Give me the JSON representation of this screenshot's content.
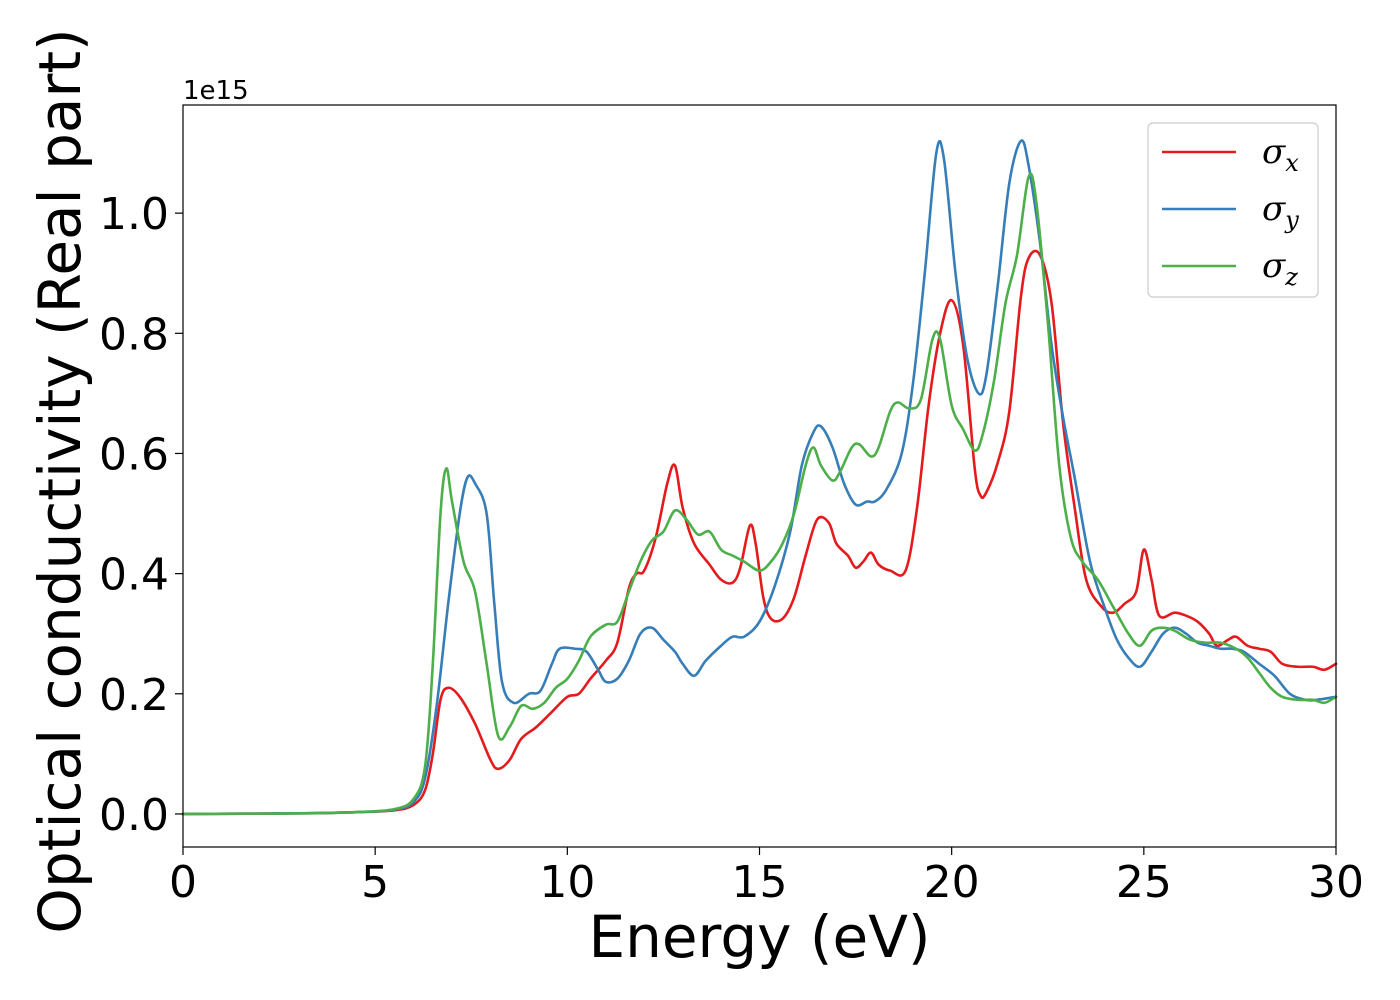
{
  "chart_data": {
    "type": "line",
    "xlabel": "Energy (eV)",
    "ylabel": "Optical conductivity (Real part)",
    "y_offset_label": "1e15",
    "xlim": [
      0,
      30
    ],
    "ylim": [
      -0.055,
      1.18
    ],
    "xticks": [
      0,
      5,
      10,
      15,
      20,
      25,
      30
    ],
    "xtick_labels": [
      "0",
      "5",
      "10",
      "15",
      "20",
      "25",
      "30"
    ],
    "yticks": [
      0.0,
      0.2,
      0.4,
      0.6,
      0.8,
      1.0
    ],
    "ytick_labels": [
      "0.0",
      "0.2",
      "0.4",
      "0.6",
      "0.8",
      "1.0"
    ],
    "grid": false,
    "legend_position": "top-right",
    "series": [
      {
        "name": "σx",
        "symbol": "σ",
        "subscript": "x",
        "color": "#e41a1c",
        "points": [
          [
            0,
            0
          ],
          [
            3,
            0.001
          ],
          [
            4.5,
            0.003
          ],
          [
            5.5,
            0.006
          ],
          [
            6.0,
            0.015
          ],
          [
            6.3,
            0.04
          ],
          [
            6.5,
            0.1
          ],
          [
            6.7,
            0.19
          ],
          [
            6.9,
            0.21
          ],
          [
            7.2,
            0.195
          ],
          [
            7.6,
            0.15
          ],
          [
            8.0,
            0.09
          ],
          [
            8.2,
            0.075
          ],
          [
            8.5,
            0.09
          ],
          [
            8.8,
            0.125
          ],
          [
            9.2,
            0.145
          ],
          [
            9.6,
            0.17
          ],
          [
            10.0,
            0.195
          ],
          [
            10.3,
            0.2
          ],
          [
            10.6,
            0.225
          ],
          [
            11.0,
            0.255
          ],
          [
            11.3,
            0.285
          ],
          [
            11.6,
            0.375
          ],
          [
            11.8,
            0.4
          ],
          [
            12.0,
            0.405
          ],
          [
            12.3,
            0.46
          ],
          [
            12.6,
            0.55
          ],
          [
            12.8,
            0.58
          ],
          [
            13.0,
            0.51
          ],
          [
            13.3,
            0.45
          ],
          [
            13.7,
            0.415
          ],
          [
            14.0,
            0.39
          ],
          [
            14.3,
            0.385
          ],
          [
            14.5,
            0.41
          ],
          [
            14.75,
            0.48
          ],
          [
            14.9,
            0.45
          ],
          [
            15.1,
            0.36
          ],
          [
            15.3,
            0.325
          ],
          [
            15.6,
            0.325
          ],
          [
            15.9,
            0.36
          ],
          [
            16.2,
            0.43
          ],
          [
            16.5,
            0.49
          ],
          [
            16.8,
            0.485
          ],
          [
            17.0,
            0.45
          ],
          [
            17.3,
            0.43
          ],
          [
            17.5,
            0.41
          ],
          [
            17.7,
            0.42
          ],
          [
            17.9,
            0.435
          ],
          [
            18.1,
            0.415
          ],
          [
            18.4,
            0.405
          ],
          [
            18.8,
            0.405
          ],
          [
            19.1,
            0.51
          ],
          [
            19.4,
            0.68
          ],
          [
            19.7,
            0.8
          ],
          [
            20.0,
            0.855
          ],
          [
            20.3,
            0.78
          ],
          [
            20.6,
            0.575
          ],
          [
            20.75,
            0.53
          ],
          [
            20.9,
            0.535
          ],
          [
            21.2,
            0.585
          ],
          [
            21.5,
            0.67
          ],
          [
            21.8,
            0.86
          ],
          [
            22.0,
            0.925
          ],
          [
            22.3,
            0.93
          ],
          [
            22.6,
            0.85
          ],
          [
            22.9,
            0.65
          ],
          [
            23.2,
            0.51
          ],
          [
            23.5,
            0.39
          ],
          [
            23.9,
            0.345
          ],
          [
            24.2,
            0.335
          ],
          [
            24.5,
            0.35
          ],
          [
            24.8,
            0.37
          ],
          [
            25.0,
            0.44
          ],
          [
            25.2,
            0.39
          ],
          [
            25.4,
            0.33
          ],
          [
            25.8,
            0.335
          ],
          [
            26.1,
            0.33
          ],
          [
            26.4,
            0.32
          ],
          [
            26.7,
            0.3
          ],
          [
            26.9,
            0.28
          ],
          [
            27.2,
            0.29
          ],
          [
            27.4,
            0.295
          ],
          [
            27.7,
            0.28
          ],
          [
            28.0,
            0.275
          ],
          [
            28.3,
            0.27
          ],
          [
            28.6,
            0.25
          ],
          [
            29.0,
            0.245
          ],
          [
            29.4,
            0.245
          ],
          [
            29.7,
            0.24
          ],
          [
            30.0,
            0.25
          ]
        ]
      },
      {
        "name": "σy",
        "symbol": "σ",
        "subscript": "y",
        "color": "#377eb8",
        "points": [
          [
            0,
            0
          ],
          [
            3,
            0.001
          ],
          [
            4.5,
            0.003
          ],
          [
            5.5,
            0.007
          ],
          [
            6.0,
            0.02
          ],
          [
            6.3,
            0.06
          ],
          [
            6.6,
            0.18
          ],
          [
            6.9,
            0.35
          ],
          [
            7.2,
            0.5
          ],
          [
            7.4,
            0.56
          ],
          [
            7.6,
            0.55
          ],
          [
            7.9,
            0.5
          ],
          [
            8.1,
            0.35
          ],
          [
            8.3,
            0.22
          ],
          [
            8.6,
            0.185
          ],
          [
            9.0,
            0.2
          ],
          [
            9.3,
            0.205
          ],
          [
            9.6,
            0.25
          ],
          [
            9.8,
            0.275
          ],
          [
            10.2,
            0.275
          ],
          [
            10.5,
            0.27
          ],
          [
            10.8,
            0.24
          ],
          [
            11.0,
            0.22
          ],
          [
            11.3,
            0.225
          ],
          [
            11.6,
            0.255
          ],
          [
            11.9,
            0.3
          ],
          [
            12.2,
            0.31
          ],
          [
            12.5,
            0.29
          ],
          [
            12.8,
            0.27
          ],
          [
            13.0,
            0.25
          ],
          [
            13.3,
            0.23
          ],
          [
            13.6,
            0.255
          ],
          [
            14.0,
            0.28
          ],
          [
            14.3,
            0.295
          ],
          [
            14.6,
            0.295
          ],
          [
            15.0,
            0.32
          ],
          [
            15.4,
            0.38
          ],
          [
            15.8,
            0.47
          ],
          [
            16.1,
            0.58
          ],
          [
            16.4,
            0.635
          ],
          [
            16.6,
            0.645
          ],
          [
            16.9,
            0.61
          ],
          [
            17.2,
            0.55
          ],
          [
            17.5,
            0.515
          ],
          [
            17.8,
            0.52
          ],
          [
            18.0,
            0.52
          ],
          [
            18.3,
            0.54
          ],
          [
            18.7,
            0.6
          ],
          [
            19.0,
            0.72
          ],
          [
            19.3,
            0.9
          ],
          [
            19.6,
            1.1
          ],
          [
            19.8,
            1.09
          ],
          [
            20.1,
            0.9
          ],
          [
            20.4,
            0.76
          ],
          [
            20.7,
            0.7
          ],
          [
            20.9,
            0.73
          ],
          [
            21.2,
            0.88
          ],
          [
            21.5,
            1.05
          ],
          [
            21.8,
            1.12
          ],
          [
            22.0,
            1.08
          ],
          [
            22.3,
            0.95
          ],
          [
            22.6,
            0.78
          ],
          [
            22.9,
            0.66
          ],
          [
            23.2,
            0.56
          ],
          [
            23.6,
            0.42
          ],
          [
            24.0,
            0.34
          ],
          [
            24.3,
            0.29
          ],
          [
            24.6,
            0.26
          ],
          [
            24.9,
            0.245
          ],
          [
            25.2,
            0.27
          ],
          [
            25.5,
            0.3
          ],
          [
            25.8,
            0.31
          ],
          [
            26.1,
            0.3
          ],
          [
            26.4,
            0.285
          ],
          [
            26.7,
            0.28
          ],
          [
            27.0,
            0.275
          ],
          [
            27.3,
            0.275
          ],
          [
            27.6,
            0.27
          ],
          [
            28.0,
            0.25
          ],
          [
            28.4,
            0.23
          ],
          [
            28.8,
            0.2
          ],
          [
            29.2,
            0.19
          ],
          [
            29.5,
            0.19
          ],
          [
            30.0,
            0.195
          ]
        ]
      },
      {
        "name": "σz",
        "symbol": "σ",
        "subscript": "z",
        "color": "#4daf4a",
        "points": [
          [
            0,
            0
          ],
          [
            3,
            0.001
          ],
          [
            4.5,
            0.003
          ],
          [
            5.5,
            0.008
          ],
          [
            6.0,
            0.025
          ],
          [
            6.3,
            0.08
          ],
          [
            6.5,
            0.25
          ],
          [
            6.7,
            0.5
          ],
          [
            6.85,
            0.575
          ],
          [
            7.0,
            0.52
          ],
          [
            7.3,
            0.42
          ],
          [
            7.6,
            0.37
          ],
          [
            7.9,
            0.25
          ],
          [
            8.2,
            0.13
          ],
          [
            8.5,
            0.145
          ],
          [
            8.8,
            0.18
          ],
          [
            9.1,
            0.175
          ],
          [
            9.4,
            0.185
          ],
          [
            9.7,
            0.21
          ],
          [
            10.0,
            0.225
          ],
          [
            10.3,
            0.255
          ],
          [
            10.6,
            0.295
          ],
          [
            11.0,
            0.315
          ],
          [
            11.3,
            0.32
          ],
          [
            11.6,
            0.37
          ],
          [
            11.9,
            0.42
          ],
          [
            12.2,
            0.455
          ],
          [
            12.5,
            0.47
          ],
          [
            12.8,
            0.505
          ],
          [
            13.1,
            0.49
          ],
          [
            13.4,
            0.465
          ],
          [
            13.7,
            0.47
          ],
          [
            14.0,
            0.44
          ],
          [
            14.3,
            0.43
          ],
          [
            14.6,
            0.42
          ],
          [
            15.0,
            0.405
          ],
          [
            15.3,
            0.42
          ],
          [
            15.6,
            0.45
          ],
          [
            15.9,
            0.5
          ],
          [
            16.2,
            0.58
          ],
          [
            16.4,
            0.61
          ],
          [
            16.6,
            0.58
          ],
          [
            16.9,
            0.555
          ],
          [
            17.1,
            0.57
          ],
          [
            17.4,
            0.61
          ],
          [
            17.6,
            0.615
          ],
          [
            17.9,
            0.595
          ],
          [
            18.1,
            0.61
          ],
          [
            18.4,
            0.67
          ],
          [
            18.6,
            0.685
          ],
          [
            18.9,
            0.675
          ],
          [
            19.2,
            0.69
          ],
          [
            19.5,
            0.79
          ],
          [
            19.7,
            0.79
          ],
          [
            20.0,
            0.68
          ],
          [
            20.3,
            0.64
          ],
          [
            20.6,
            0.605
          ],
          [
            20.8,
            0.63
          ],
          [
            21.1,
            0.72
          ],
          [
            21.4,
            0.85
          ],
          [
            21.7,
            0.93
          ],
          [
            22.0,
            1.06
          ],
          [
            22.2,
            1.02
          ],
          [
            22.5,
            0.82
          ],
          [
            22.8,
            0.58
          ],
          [
            23.1,
            0.46
          ],
          [
            23.4,
            0.42
          ],
          [
            23.8,
            0.39
          ],
          [
            24.2,
            0.345
          ],
          [
            24.6,
            0.3
          ],
          [
            24.9,
            0.28
          ],
          [
            25.2,
            0.305
          ],
          [
            25.5,
            0.31
          ],
          [
            25.8,
            0.305
          ],
          [
            26.2,
            0.29
          ],
          [
            26.6,
            0.285
          ],
          [
            27.0,
            0.285
          ],
          [
            27.4,
            0.275
          ],
          [
            27.7,
            0.26
          ],
          [
            28.0,
            0.235
          ],
          [
            28.3,
            0.21
          ],
          [
            28.6,
            0.195
          ],
          [
            29.0,
            0.19
          ],
          [
            29.4,
            0.19
          ],
          [
            29.7,
            0.185
          ],
          [
            30.0,
            0.195
          ]
        ]
      }
    ]
  }
}
